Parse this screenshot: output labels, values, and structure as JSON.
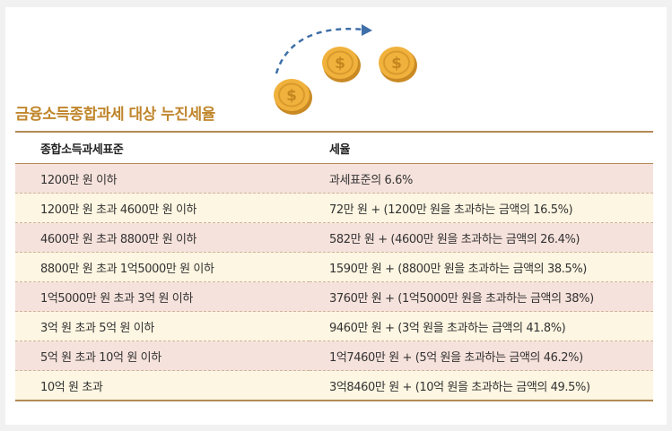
{
  "title": "금융소득종합과세 대상 누진세율",
  "colors": {
    "title": "#c0862c",
    "row_pink": "#f6e2dc",
    "row_cream": "#fdf6e2",
    "rule": "#b28a55",
    "coin": "#f0b23c",
    "arrow": "#3f6fa8"
  },
  "icons": {
    "coin": "coin-icon",
    "arrow": "dashed-arrow-icon"
  },
  "coin_symbol": "$",
  "table": {
    "headers": [
      "종합소득과세표준",
      "세율"
    ],
    "rows": [
      [
        "1200만 원 이하",
        "과세표준의 6.6%"
      ],
      [
        "1200만 원 초과 4600만 원 이하",
        "72만 원 + (1200만 원을 초과하는 금액의 16.5%)"
      ],
      [
        "4600만 원 초과 8800만 원 이하",
        "582만 원 + (4600만 원을 초과하는 금액의 26.4%)"
      ],
      [
        "8800만 원 초과 1억5000만 원 이하",
        "1590만 원 + (8800만 원을 초과하는 금액의 38.5%)"
      ],
      [
        "1억5000만 원 초과 3억 원 이하",
        "3760만 원 + (1억5000만 원을 초과하는 금액의 38%)"
      ],
      [
        "3억 원 초과 5억 원 이하",
        "9460만 원 + (3억 원을 초과하는 금액의 41.8%)"
      ],
      [
        "5억 원 초과 10억 원 이하",
        "1억7460만 원 + (5억 원을 초과하는 금액의 46.2%)"
      ],
      [
        "10억 원 초과",
        "3억8460만 원 + (10억 원을 초과하는 금액의 49.5%)"
      ]
    ]
  }
}
